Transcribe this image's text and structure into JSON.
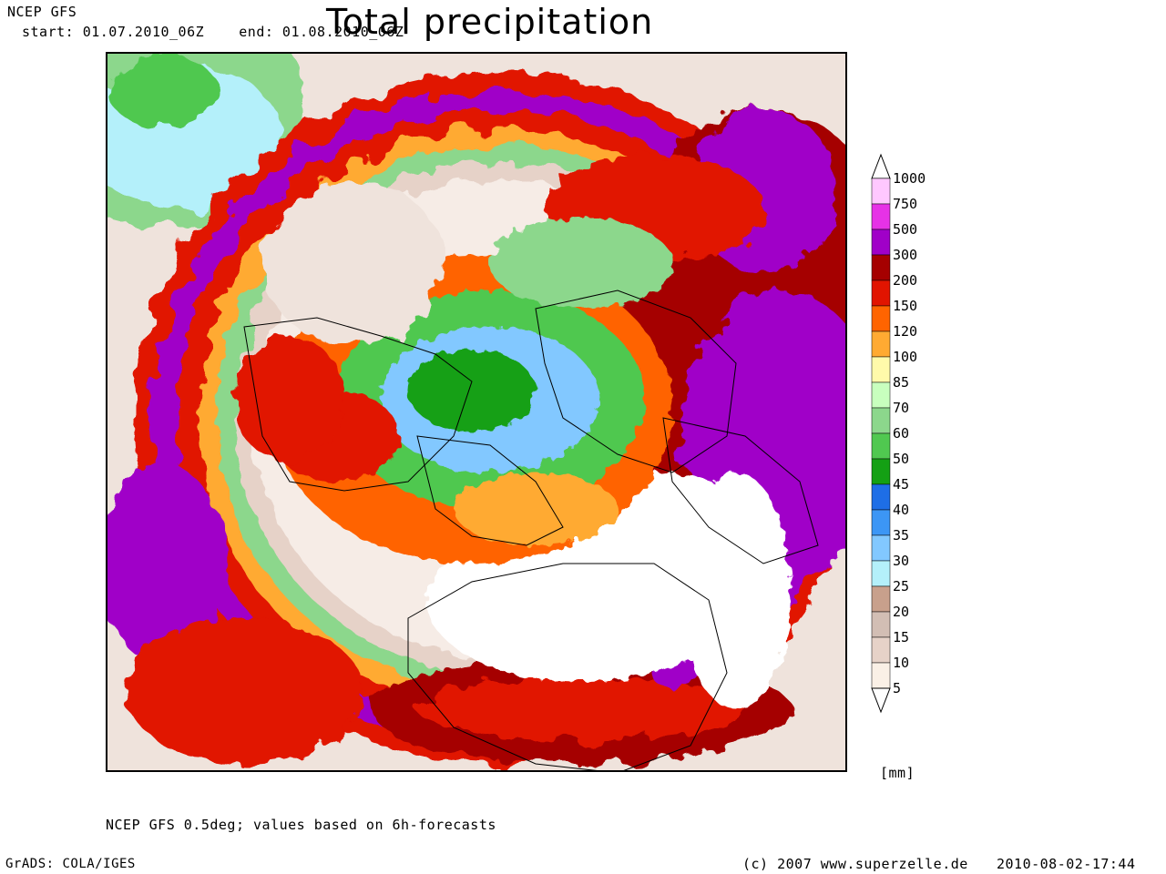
{
  "header": {
    "model": "NCEP GFS",
    "period": "start: 01.07.2010_06Z    end: 01.08.2010_06Z",
    "title": "Total precipitation"
  },
  "legend": {
    "levels": [
      "1000",
      "750",
      "500",
      "300",
      "200",
      "150",
      "120",
      "100",
      "85",
      "70",
      "60",
      "50",
      "45",
      "40",
      "35",
      "30",
      "25",
      "20",
      "15",
      "10",
      "5"
    ],
    "colors": [
      "#ffc8ff",
      "#e632e6",
      "#a000c8",
      "#a50000",
      "#e11400",
      "#ff6400",
      "#ffaa32",
      "#fffaaa",
      "#c8ffbe",
      "#8cd78c",
      "#50c850",
      "#14a014",
      "#1e6ee6",
      "#3c96f5",
      "#82c8ff",
      "#b4f0fa",
      "#c8a08c",
      "#d2beb4",
      "#e6d2c8",
      "#faf0e6"
    ],
    "unit": "[mm]"
  },
  "footer": {
    "source": "NCEP GFS 0.5deg; values based on 6h-forecasts",
    "software": "GrADS: COLA/IGES",
    "copyright": "(c) 2007 www.superzelle.de",
    "timestamp": "2010-08-02-17:44"
  },
  "map": {
    "projection": "polar-stereographic",
    "region": "Northern Hemisphere"
  }
}
